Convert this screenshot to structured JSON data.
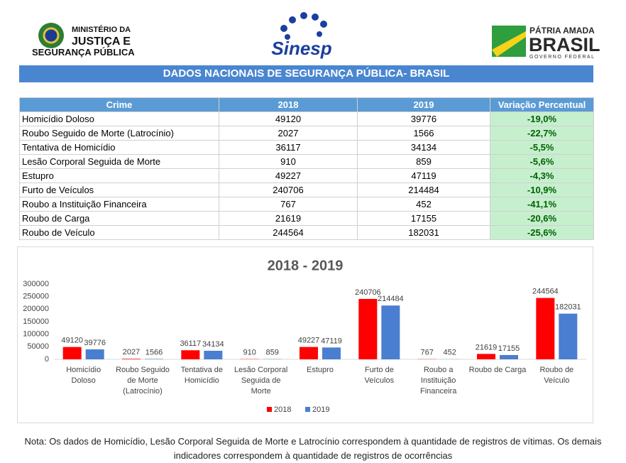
{
  "header": {
    "ministry": [
      "MINISTÉRIO DA",
      "JUSTIÇA E",
      "SEGURANÇA PÚBLICA"
    ],
    "center_logo": "Sinesp",
    "right_logo": [
      "PÁTRIA AMADA",
      "BRASIL",
      "GOVERNO FEDERAL"
    ]
  },
  "title": "DADOS NACIONAIS DE SEGURANÇA PÚBLICA- BRASIL",
  "table": {
    "columns": [
      "Crime",
      "2018",
      "2019",
      "Variação Percentual"
    ],
    "rows": [
      [
        "Homicídio Doloso",
        49120,
        39776,
        "-19,0%"
      ],
      [
        "Roubo Seguido de Morte (Latrocínio)",
        2027,
        1566,
        "-22,7%"
      ],
      [
        "Tentativa de Homicídio",
        36117,
        34134,
        "-5,5%"
      ],
      [
        "Lesão Corporal Seguida de Morte",
        910,
        859,
        "-5,6%"
      ],
      [
        "Estupro",
        49227,
        47119,
        "-4,3%"
      ],
      [
        "Furto de Veículos",
        240706,
        214484,
        "-10,9%"
      ],
      [
        "Roubo a Instituição Financeira",
        767,
        452,
        "-41,1%"
      ],
      [
        "Roubo de Carga",
        21619,
        17155,
        "-20,6%"
      ],
      [
        "Roubo de Veículo",
        244564,
        182031,
        "-25,6%"
      ]
    ]
  },
  "chart_data": {
    "type": "bar",
    "title": "2018 - 2019",
    "categories": [
      "Homicídio Doloso",
      "Roubo Seguido de Morte (Latrocínio)",
      "Tentativa de Homicídio",
      "Lesão Corporal Seguida de Morte",
      "Estupro",
      "Furto de Veículos",
      "Roubo a Instituição Financeira",
      "Roubo de Carga",
      "Roubo de Veículo"
    ],
    "series": [
      {
        "name": "2018",
        "color": "#ff0000",
        "values": [
          49120,
          2027,
          36117,
          910,
          49227,
          240706,
          767,
          21619,
          244564
        ]
      },
      {
        "name": "2019",
        "color": "#4a7ed0",
        "values": [
          39776,
          1566,
          34134,
          859,
          47119,
          214484,
          452,
          17155,
          182031
        ]
      }
    ],
    "ylim": [
      0,
      300000
    ],
    "yticks": [
      0,
      50000,
      100000,
      150000,
      200000,
      250000,
      300000
    ],
    "grid": false,
    "legend": "bottom"
  },
  "note": "Nota: Os dados de Homicídio, Lesão Corporal Seguida de Morte e Latrocínio correspondem à quantidade de registros de vítimas. Os demais indicadores correspondem à quantidade de registros de ocorrências"
}
